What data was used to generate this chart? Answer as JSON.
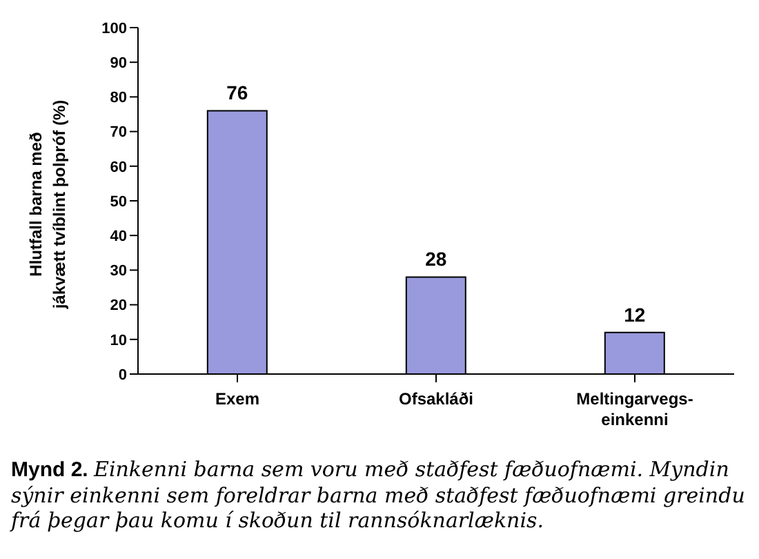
{
  "chart_data": {
    "type": "bar",
    "ylabel": "Hlutfall barna með\njákvætt tvíblint þolpróf (%)",
    "categories": [
      "Exem",
      "Ofsakláði",
      "Meltingarvegs-einkenni"
    ],
    "values": [
      76,
      28,
      12
    ],
    "color": "#9999dd",
    "data_labels": true,
    "grid": false,
    "legend": false,
    "ylim": [
      0,
      100
    ],
    "yticks": [
      0,
      10,
      20,
      30,
      40,
      50,
      60,
      70,
      80,
      90,
      100
    ],
    "annotations": [
      "Mynd 2.",
      "Einkenni barna sem voru með staðfest fæðuofnæmi. Myndin sýnir einkenni sem foreldrar barna með staðfest fæðuofnæmi greindu frá þegar þau komu í skoðun til rannsóknarlæknis."
    ]
  }
}
